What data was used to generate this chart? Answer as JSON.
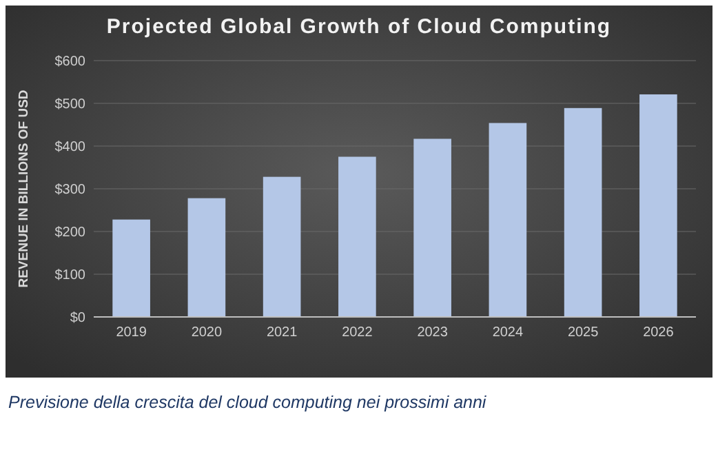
{
  "chart_data": {
    "type": "bar",
    "title": "Projected Global Growth of Cloud Computing",
    "ylabel": "REVENUE IN BILLIONS OF USD",
    "categories": [
      "2019",
      "2020",
      "2021",
      "2022",
      "2023",
      "2024",
      "2025",
      "2026"
    ],
    "values": [
      228,
      278,
      328,
      375,
      417,
      454,
      489,
      521
    ],
    "color": "#b4c7e7",
    "ylim": [
      0,
      600
    ],
    "yticks": [
      {
        "value": 0,
        "label": "$0"
      },
      {
        "value": 100,
        "label": "$100"
      },
      {
        "value": 200,
        "label": "$200"
      },
      {
        "value": 300,
        "label": "$300"
      },
      {
        "value": 400,
        "label": "$400"
      },
      {
        "value": 500,
        "label": "$500"
      },
      {
        "value": 600,
        "label": "$600"
      }
    ],
    "grid": "y",
    "annotations": [
      "Previsione della crescita del cloud computing nei prossimi anni"
    ]
  }
}
